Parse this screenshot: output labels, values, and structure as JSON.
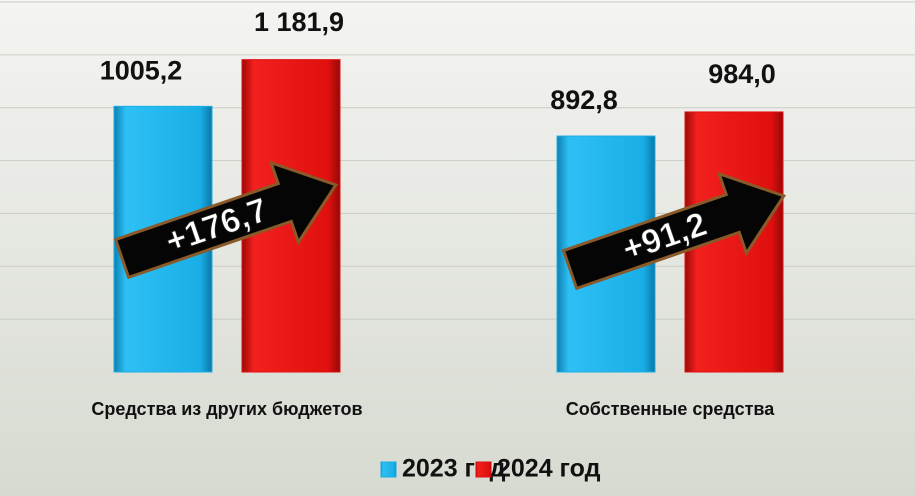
{
  "chart_data": {
    "type": "bar",
    "categories": [
      "Средства из других бюджетов",
      "Собственные средства"
    ],
    "series": [
      {
        "name": "2023 год",
        "color": "#19aee6",
        "values": [
          1005.2,
          892.8
        ],
        "value_labels": [
          "1005,2",
          "892,8"
        ]
      },
      {
        "name": "2024 год",
        "color": "#e0100f",
        "values": [
          1181.9,
          984.0
        ],
        "value_labels": [
          "1 181,9",
          "984,0"
        ]
      }
    ],
    "annotations": [
      "+176,7",
      "+91,2"
    ],
    "ylim": [
      0,
      1400
    ],
    "yticks": [
      200,
      400,
      600,
      800,
      1000,
      1200,
      1400
    ],
    "grid": true
  }
}
